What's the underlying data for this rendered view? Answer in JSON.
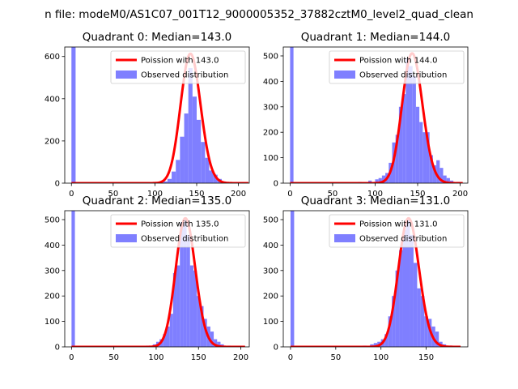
{
  "suptitle": "n file: modeM0/AS1C07_001T12_9000005352_37882cztM0_level2_quad_clean",
  "chart_data": [
    {
      "type": "bar",
      "title": "Quadrant 0: Median=143.0",
      "xlim": [
        -8,
        213
      ],
      "ylim": [
        0,
        645
      ],
      "xticks": [
        0,
        50,
        100,
        150,
        200
      ],
      "yticks": [
        0,
        200,
        400,
        600
      ],
      "bin_width": 5,
      "bins": [
        {
          "x": 0,
          "y": 645
        },
        {
          "x": 105,
          "y": 3
        },
        {
          "x": 110,
          "y": 8
        },
        {
          "x": 115,
          "y": 20
        },
        {
          "x": 120,
          "y": 55
        },
        {
          "x": 125,
          "y": 110
        },
        {
          "x": 130,
          "y": 220
        },
        {
          "x": 135,
          "y": 330
        },
        {
          "x": 140,
          "y": 545
        },
        {
          "x": 145,
          "y": 410
        },
        {
          "x": 150,
          "y": 300
        },
        {
          "x": 155,
          "y": 195
        },
        {
          "x": 160,
          "y": 120
        },
        {
          "x": 165,
          "y": 60
        },
        {
          "x": 170,
          "y": 40
        },
        {
          "x": 175,
          "y": 20
        },
        {
          "x": 180,
          "y": 8
        }
      ],
      "median": 143,
      "fit_peak": 613,
      "fit_range": [
        0,
        212
      ],
      "legend": [
        {
          "label": "Poission with 143.0",
          "color": "#ff0000",
          "kind": "line"
        },
        {
          "label": "Observed distribution",
          "color": "#7f7fff",
          "kind": "patch"
        }
      ]
    },
    {
      "type": "bar",
      "title": "Quadrant 1: Median=144.0",
      "xlim": [
        -8,
        209
      ],
      "ylim": [
        0,
        535
      ],
      "xticks": [
        0,
        50,
        100,
        150,
        200
      ],
      "yticks": [
        0,
        100,
        200,
        300,
        400,
        500
      ],
      "bin_width": 4,
      "bins": [
        {
          "x": 0,
          "y": 535
        },
        {
          "x": 80,
          "y": 5
        },
        {
          "x": 92,
          "y": 10
        },
        {
          "x": 100,
          "y": 15
        },
        {
          "x": 104,
          "y": 20
        },
        {
          "x": 108,
          "y": 30
        },
        {
          "x": 112,
          "y": 40
        },
        {
          "x": 116,
          "y": 80
        },
        {
          "x": 120,
          "y": 160
        },
        {
          "x": 124,
          "y": 190
        },
        {
          "x": 128,
          "y": 300
        },
        {
          "x": 132,
          "y": 350
        },
        {
          "x": 136,
          "y": 490
        },
        {
          "x": 140,
          "y": 460
        },
        {
          "x": 144,
          "y": 420
        },
        {
          "x": 148,
          "y": 300
        },
        {
          "x": 152,
          "y": 240
        },
        {
          "x": 156,
          "y": 200
        },
        {
          "x": 160,
          "y": 200
        },
        {
          "x": 164,
          "y": 110
        },
        {
          "x": 168,
          "y": 70
        },
        {
          "x": 172,
          "y": 90
        },
        {
          "x": 176,
          "y": 60
        },
        {
          "x": 180,
          "y": 30
        },
        {
          "x": 184,
          "y": 20
        },
        {
          "x": 188,
          "y": 10
        },
        {
          "x": 196,
          "y": 5
        }
      ],
      "median": 144,
      "fit_peak": 510,
      "fit_range": [
        0,
        203
      ],
      "legend": [
        {
          "label": "Poission with 144.0",
          "color": "#ff0000",
          "kind": "line"
        },
        {
          "label": "Observed distribution",
          "color": "#7f7fff",
          "kind": "patch"
        }
      ]
    },
    {
      "type": "bar",
      "title": "Quadrant 2: Median=135.0",
      "xlim": [
        -8,
        210
      ],
      "ylim": [
        0,
        535
      ],
      "xticks": [
        0,
        50,
        100,
        150,
        200
      ],
      "yticks": [
        0,
        100,
        200,
        300,
        400,
        500
      ],
      "bin_width": 4,
      "bins": [
        {
          "x": 0,
          "y": 535
        },
        {
          "x": 88,
          "y": 5
        },
        {
          "x": 96,
          "y": 10
        },
        {
          "x": 100,
          "y": 20
        },
        {
          "x": 104,
          "y": 30
        },
        {
          "x": 108,
          "y": 50
        },
        {
          "x": 112,
          "y": 80
        },
        {
          "x": 116,
          "y": 130
        },
        {
          "x": 120,
          "y": 290
        },
        {
          "x": 124,
          "y": 320
        },
        {
          "x": 128,
          "y": 490
        },
        {
          "x": 132,
          "y": 500
        },
        {
          "x": 136,
          "y": 440
        },
        {
          "x": 140,
          "y": 320
        },
        {
          "x": 144,
          "y": 300
        },
        {
          "x": 148,
          "y": 200
        },
        {
          "x": 152,
          "y": 160
        },
        {
          "x": 156,
          "y": 110
        },
        {
          "x": 160,
          "y": 80
        },
        {
          "x": 164,
          "y": 60
        },
        {
          "x": 168,
          "y": 30
        },
        {
          "x": 172,
          "y": 20
        },
        {
          "x": 176,
          "y": 10
        },
        {
          "x": 184,
          "y": 5
        }
      ],
      "median": 135,
      "fit_peak": 505,
      "fit_range": [
        0,
        205
      ],
      "legend": [
        {
          "label": "Poission with 135.0",
          "color": "#ff0000",
          "kind": "line"
        },
        {
          "label": "Observed distribution",
          "color": "#7f7fff",
          "kind": "patch"
        }
      ]
    },
    {
      "type": "bar",
      "title": "Quadrant 3: Median=131.0",
      "xlim": [
        -8,
        196
      ],
      "ylim": [
        0,
        535
      ],
      "xticks": [
        0,
        50,
        100,
        150
      ],
      "yticks": [
        0,
        100,
        200,
        300,
        400,
        500
      ],
      "bin_width": 4,
      "bins": [
        {
          "x": 0,
          "y": 535
        },
        {
          "x": 80,
          "y": 5
        },
        {
          "x": 88,
          "y": 10
        },
        {
          "x": 92,
          "y": 15
        },
        {
          "x": 96,
          "y": 20
        },
        {
          "x": 100,
          "y": 30
        },
        {
          "x": 104,
          "y": 50
        },
        {
          "x": 108,
          "y": 120
        },
        {
          "x": 112,
          "y": 200
        },
        {
          "x": 116,
          "y": 300
        },
        {
          "x": 120,
          "y": 380
        },
        {
          "x": 124,
          "y": 460
        },
        {
          "x": 128,
          "y": 500
        },
        {
          "x": 132,
          "y": 440
        },
        {
          "x": 136,
          "y": 330
        },
        {
          "x": 140,
          "y": 230
        },
        {
          "x": 144,
          "y": 200
        },
        {
          "x": 148,
          "y": 120
        },
        {
          "x": 152,
          "y": 110
        },
        {
          "x": 156,
          "y": 80
        },
        {
          "x": 160,
          "y": 60
        },
        {
          "x": 164,
          "y": 20
        },
        {
          "x": 168,
          "y": 10
        },
        {
          "x": 176,
          "y": 5
        }
      ],
      "median": 131,
      "fit_peak": 505,
      "fit_range": [
        0,
        188
      ],
      "legend": [
        {
          "label": "Poission with 131.0",
          "color": "#ff0000",
          "kind": "line"
        },
        {
          "label": "Observed distribution",
          "color": "#7f7fff",
          "kind": "patch"
        }
      ]
    }
  ]
}
